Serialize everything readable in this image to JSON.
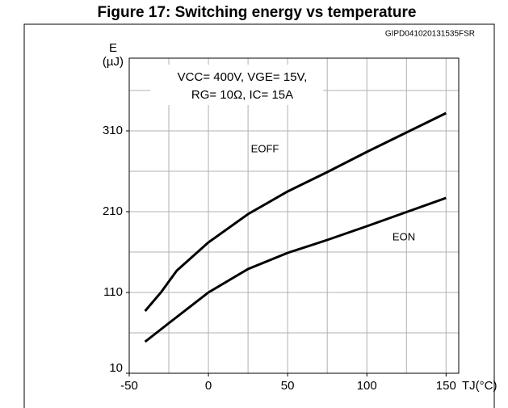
{
  "chart_data": {
    "type": "line",
    "title": "Figure 17: Switching energy vs temperature",
    "code": "GIPD041020131535FSR",
    "y_label": "E",
    "y_unit": "(µJ)",
    "x_label": "TJ(°C)",
    "annotation": [
      "VCC= 400V, VGE= 15V,",
      "RG= 10Ω, IC= 15A"
    ],
    "xlim": [
      -50,
      158
    ],
    "ylim": [
      10,
      400
    ],
    "xticks": [
      -50,
      0,
      50,
      100,
      150
    ],
    "yticks": [
      10,
      110,
      210,
      310
    ],
    "xgrid": [
      -25,
      0,
      25,
      50,
      75,
      100,
      125,
      150
    ],
    "ygrid": [
      60,
      110,
      160,
      210,
      260,
      310,
      360
    ],
    "grid": true,
    "series": [
      {
        "name": "EOFF",
        "color": "#000000",
        "x": [
          -40,
          -30,
          -20,
          0,
          25,
          50,
          75,
          100,
          150
        ],
        "values": [
          87,
          110,
          137,
          172,
          207,
          235,
          259,
          284,
          332
        ]
      },
      {
        "name": "EON",
        "color": "#000000",
        "x": [
          -40,
          -25,
          0,
          25,
          50,
          75,
          100,
          150
        ],
        "values": [
          49,
          72,
          110,
          139,
          159,
          175,
          192,
          227
        ]
      }
    ]
  }
}
